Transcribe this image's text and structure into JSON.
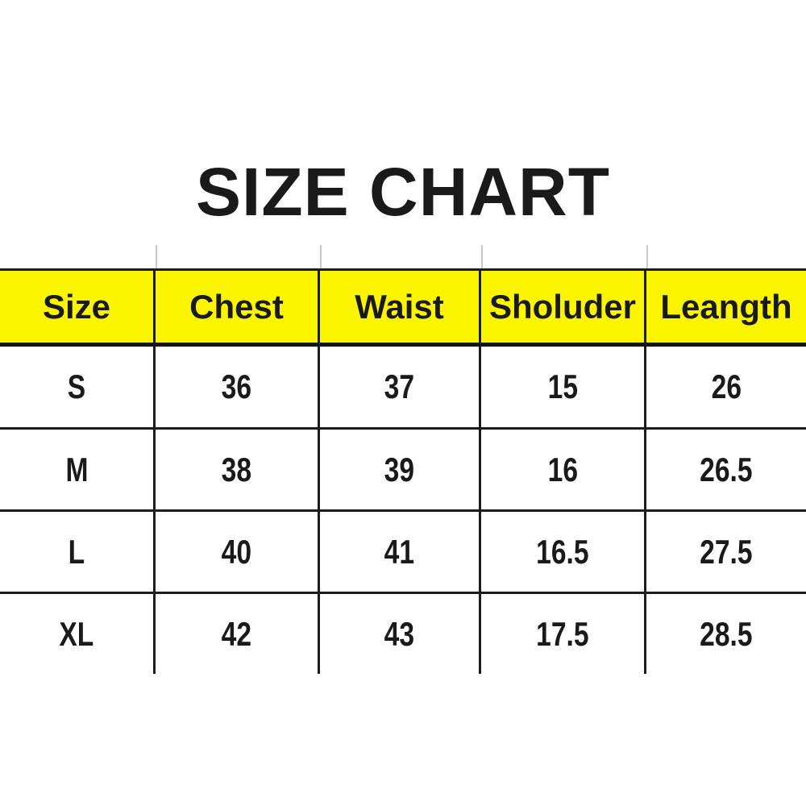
{
  "title": "SIZE CHART",
  "colors": {
    "header_bg": "#FCF500",
    "border": "#1C1C1C",
    "text": "#1A1A1A",
    "stub_gray": "#C9C9C9",
    "background": "#FFFFFF"
  },
  "chart_data": {
    "type": "table",
    "title": "SIZE CHART",
    "columns": [
      "Size",
      "Chest",
      "Waist",
      "Sholuder",
      "Leangth"
    ],
    "rows": [
      [
        "S",
        "36",
        "37",
        "15",
        "26"
      ],
      [
        "M",
        "38",
        "39",
        "16",
        "26.5"
      ],
      [
        "L",
        "40",
        "41",
        "16.5",
        "27.5"
      ],
      [
        "XL",
        "42",
        "43",
        "17.5",
        "28.5"
      ]
    ],
    "layout_hints": {
      "header_background": "#FCF500",
      "grid": true,
      "outer_left_right_bottom_borders": false
    }
  }
}
